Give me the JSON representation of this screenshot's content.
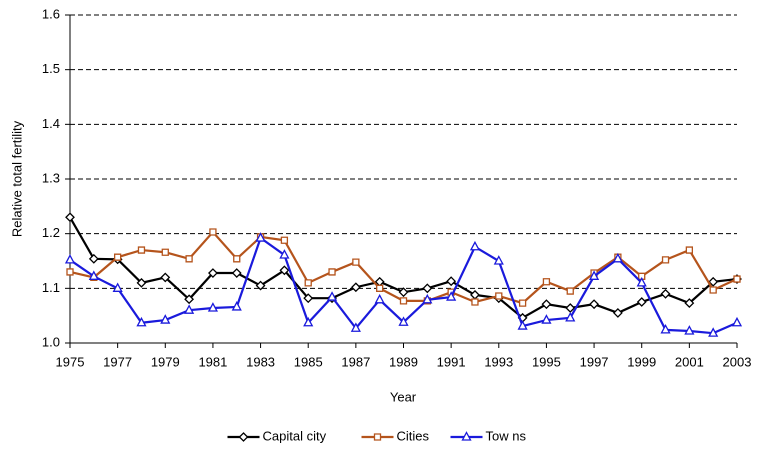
{
  "chart_data": {
    "type": "line",
    "x_label": "Year",
    "y_label": "Relative total fertility",
    "x": [
      1975,
      1976,
      1977,
      1978,
      1979,
      1980,
      1981,
      1982,
      1983,
      1984,
      1985,
      1986,
      1987,
      1988,
      1989,
      1990,
      1991,
      1992,
      1993,
      1994,
      1995,
      1996,
      1997,
      1998,
      1999,
      2000,
      2001,
      2002,
      2003
    ],
    "xlim": [
      1975,
      2003
    ],
    "xticks": [
      1975,
      1977,
      1979,
      1981,
      1983,
      1985,
      1987,
      1989,
      1991,
      1993,
      1995,
      1997,
      1999,
      2001,
      2003
    ],
    "ylim": [
      1,
      1.6
    ],
    "yticks": [
      {
        "value": 1,
        "label": "1.0"
      },
      1.1,
      1.2,
      1.3,
      1.4,
      1.5,
      1.6
    ],
    "grid": true,
    "legend": "bottom",
    "series": [
      {
        "name": "Capital city",
        "color": "#000000",
        "marker": "diamond",
        "values": [
          1.23,
          1.154,
          1.153,
          1.11,
          1.12,
          1.08,
          1.128,
          1.128,
          1.105,
          1.133,
          1.082,
          1.082,
          1.102,
          1.112,
          1.093,
          1.1,
          1.113,
          1.088,
          1.082,
          1.046,
          1.071,
          1.064,
          1.071,
          1.055,
          1.075,
          1.09,
          1.073,
          1.112,
          1.117
        ]
      },
      {
        "name": "Cities",
        "color": "#b5541c",
        "marker": "square",
        "values": [
          1.13,
          1.12,
          1.157,
          1.17,
          1.166,
          1.154,
          1.203,
          1.154,
          1.194,
          1.188,
          1.11,
          1.13,
          1.148,
          1.1,
          1.077,
          1.077,
          1.093,
          1.075,
          1.086,
          1.073,
          1.112,
          1.095,
          1.128,
          1.157,
          1.122,
          1.152,
          1.17,
          1.097,
          1.117
        ]
      },
      {
        "name": "Tow ns",
        "color": "#1a1adc",
        "marker": "triangle",
        "values": [
          1.152,
          1.122,
          1.1,
          1.037,
          1.042,
          1.06,
          1.064,
          1.066,
          1.192,
          1.161,
          1.037,
          1.084,
          1.027,
          1.079,
          1.038,
          1.079,
          1.084,
          1.176,
          1.15,
          1.031,
          1.042,
          1.046,
          1.122,
          1.154,
          1.11,
          1.024,
          1.022,
          1.018,
          1.037
        ]
      }
    ]
  }
}
